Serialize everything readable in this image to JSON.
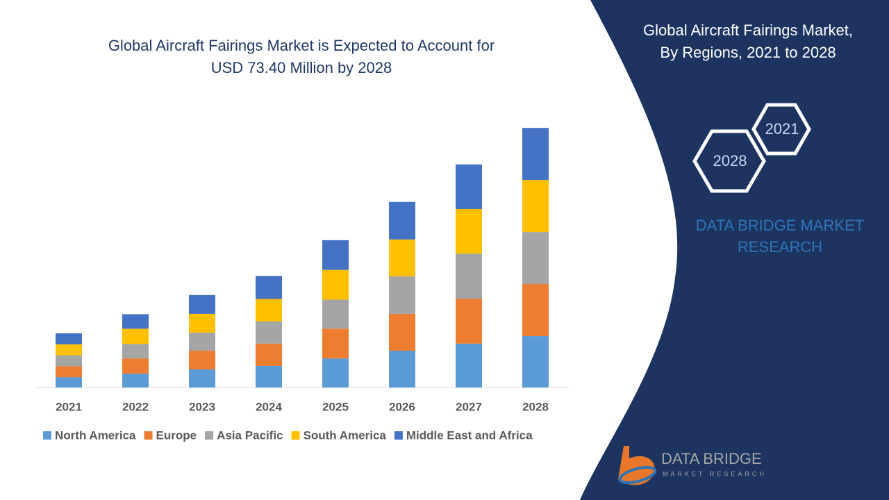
{
  "chart_data": {
    "type": "stacked-bar",
    "title": [
      "Global Aircraft Fairings Market is Expected to Account for",
      "USD 73.40 Million by 2028"
    ],
    "categories": [
      "2021",
      "2022",
      "2023",
      "2024",
      "2025",
      "2026",
      "2027",
      "2028"
    ],
    "series": [
      {
        "name": "North America",
        "color": "#5b9bd5",
        "values": [
          2.9,
          3.9,
          5.1,
          6.1,
          8.2,
          10.4,
          12.4,
          14.5
        ]
      },
      {
        "name": "Europe",
        "color": "#ed7d31",
        "values": [
          3.1,
          4.3,
          5.3,
          6.3,
          8.4,
          10.4,
          12.6,
          14.7
        ]
      },
      {
        "name": "Asia Pacific",
        "color": "#a5a5a5",
        "values": [
          3.1,
          4.1,
          5.1,
          6.3,
          8.2,
          10.6,
          12.8,
          14.7
        ]
      },
      {
        "name": "South America",
        "color": "#ffc000",
        "values": [
          3.1,
          4.3,
          5.3,
          6.3,
          8.4,
          10.4,
          12.6,
          14.7
        ]
      },
      {
        "name": "Middle East and Africa",
        "color": "#4472c4",
        "values": [
          3.1,
          4.1,
          5.3,
          6.5,
          8.4,
          10.6,
          12.6,
          14.7
        ]
      }
    ],
    "ylim": [
      0,
      80
    ],
    "legend": "bottom"
  },
  "panel": {
    "title": [
      "Global Aircraft Fairings Market,",
      "By Regions, 2021 to 2028"
    ],
    "hex_years": [
      "2021",
      "2028"
    ],
    "brand": [
      "DATA BRIDGE MARKET",
      "RESEARCH"
    ],
    "logo": [
      "DATA BRIDGE",
      "MARKET RESEARCH"
    ]
  }
}
